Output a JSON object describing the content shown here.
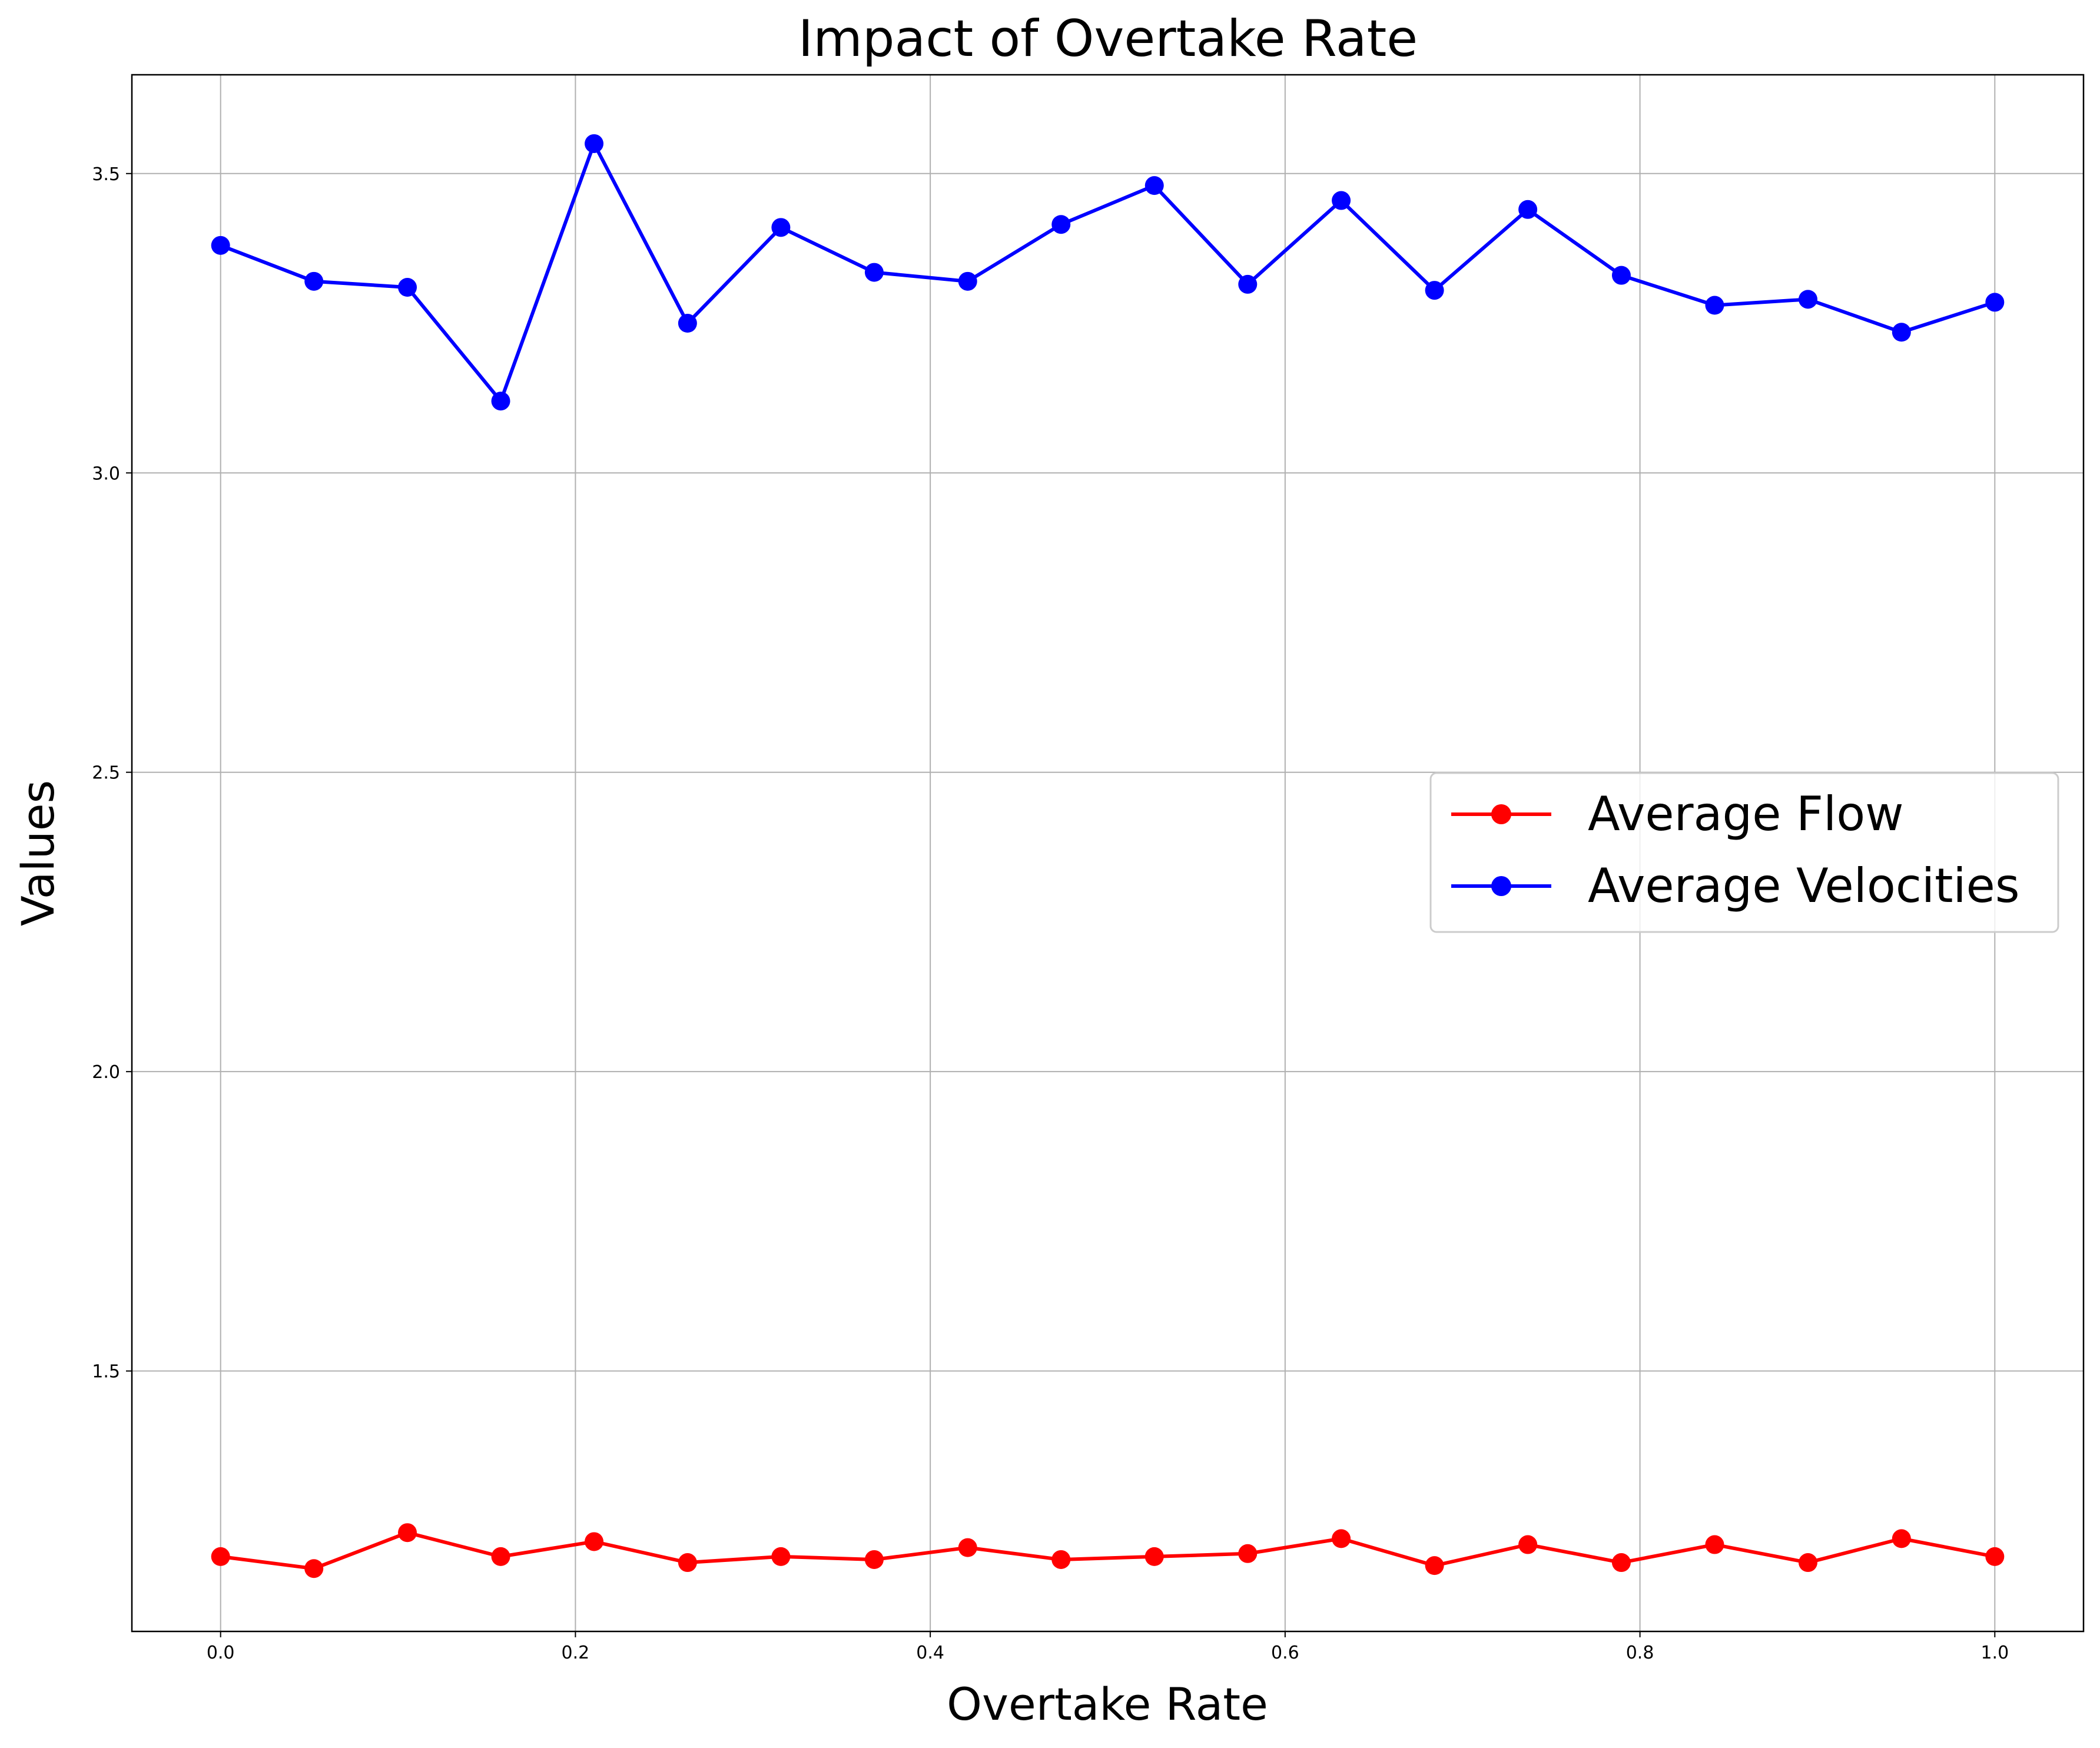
{
  "chart_data": {
    "type": "line",
    "title": "Impact of Overtake Rate",
    "xlabel": "Overtake Rate",
    "ylabel": "Values",
    "xlim": [
      -0.05,
      1.05
    ],
    "ylim": [
      1.065,
      3.665
    ],
    "xticks": [
      0.0,
      0.2,
      0.4,
      0.6,
      0.8,
      1.0
    ],
    "xtick_labels": [
      "0.0",
      "0.2",
      "0.4",
      "0.6",
      "0.8",
      "1.0"
    ],
    "yticks": [
      1.5,
      2.0,
      2.5,
      3.0,
      3.5
    ],
    "ytick_labels": [
      "1.5",
      "2.0",
      "2.5",
      "3.0",
      "3.5"
    ],
    "grid": true,
    "legend_position": "center-right",
    "x": [
      0.0,
      0.0526,
      0.1053,
      0.1579,
      0.2105,
      0.2632,
      0.3158,
      0.3684,
      0.4211,
      0.4737,
      0.5263,
      0.5789,
      0.6316,
      0.6842,
      0.7368,
      0.7895,
      0.8421,
      0.8947,
      0.9474,
      1.0
    ],
    "series": [
      {
        "name": "Average Flow",
        "color": "#ff0000",
        "marker": "circle",
        "values": [
          1.19,
          1.17,
          1.23,
          1.19,
          1.215,
          1.18,
          1.19,
          1.185,
          1.205,
          1.185,
          1.19,
          1.195,
          1.22,
          1.175,
          1.21,
          1.18,
          1.21,
          1.18,
          1.22,
          1.19
        ]
      },
      {
        "name": "Average Velocities",
        "color": "#0000ff",
        "marker": "circle",
        "values": [
          3.38,
          3.32,
          3.31,
          3.12,
          3.55,
          3.25,
          3.41,
          3.335,
          3.32,
          3.415,
          3.48,
          3.315,
          3.455,
          3.305,
          3.44,
          3.33,
          3.28,
          3.29,
          3.235,
          3.285
        ]
      }
    ]
  }
}
